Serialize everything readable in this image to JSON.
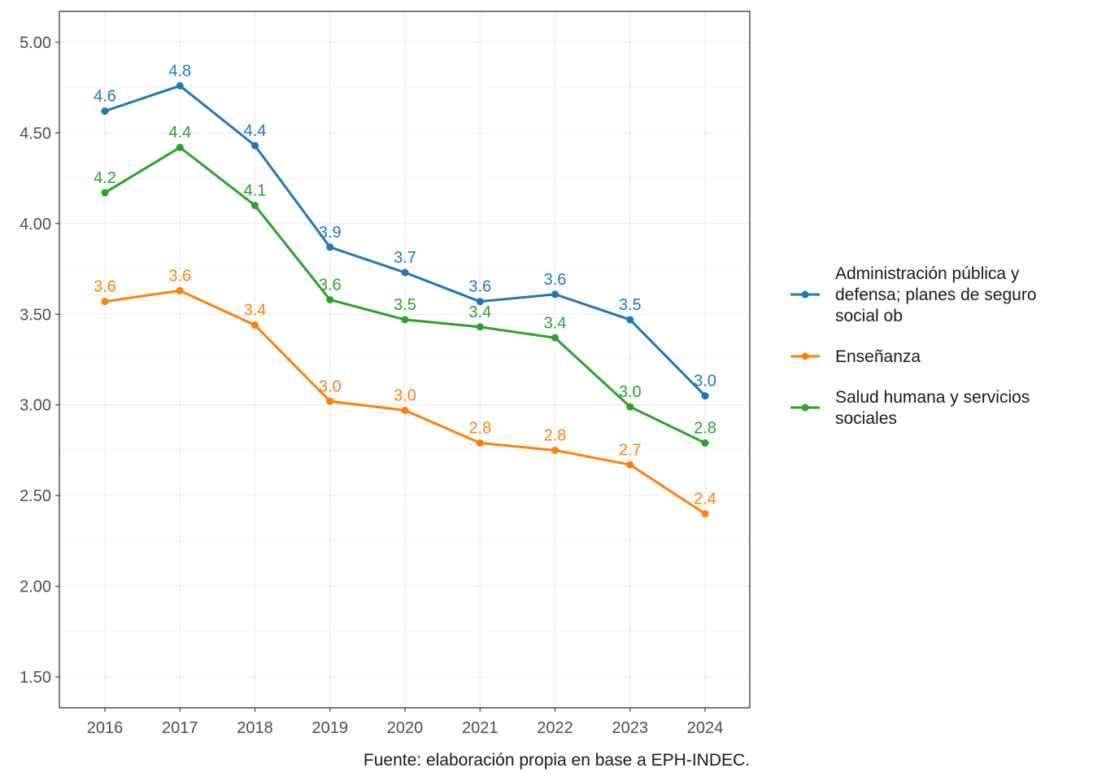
{
  "chart_data": {
    "type": "line",
    "title": "",
    "xlabel": "",
    "ylabel": "",
    "x": [
      "2016",
      "2017",
      "2018",
      "2019",
      "2020",
      "2021",
      "2022",
      "2023",
      "2024"
    ],
    "ylim": [
      1.33,
      5.17
    ],
    "yticks": [
      "1.50",
      "2.00",
      "2.50",
      "3.00",
      "3.50",
      "4.00",
      "4.50",
      "5.00"
    ],
    "grid": true,
    "legend_position": "right",
    "series": [
      {
        "name": "Administración pública y defensa; planes de seguro social ob",
        "legend_lines": [
          "Administración pública y",
          "defensa; planes de seguro",
          "social ob"
        ],
        "color": "#1f77b4",
        "values": [
          4.62,
          4.76,
          4.43,
          3.87,
          3.73,
          3.57,
          3.61,
          3.47,
          3.05
        ],
        "labels": [
          "4.6",
          "4.8",
          "4.4",
          "3.9",
          "3.7",
          "3.6",
          "3.6",
          "3.5",
          "3.0"
        ]
      },
      {
        "name": "Enseñanza",
        "legend_lines": [
          "Enseñanza"
        ],
        "color": "#ff7f0e",
        "values": [
          3.57,
          3.63,
          3.44,
          3.02,
          2.97,
          2.79,
          2.75,
          2.67,
          2.4
        ],
        "labels": [
          "3.6",
          "3.6",
          "3.4",
          "3.0",
          "3.0",
          "2.8",
          "2.8",
          "2.7",
          "2.4"
        ]
      },
      {
        "name": "Salud humana y servicios sociales",
        "legend_lines": [
          "Salud humana y servicios",
          "sociales"
        ],
        "color": "#2ca02c",
        "values": [
          4.17,
          4.42,
          4.1,
          3.58,
          3.47,
          3.43,
          3.37,
          2.99,
          2.79
        ],
        "labels": [
          "4.2",
          "4.4",
          "4.1",
          "3.6",
          "3.5",
          "3.4",
          "3.4",
          "3.0",
          "2.8"
        ]
      }
    ],
    "caption": "Fuente: elaboración propia en base a EPH-INDEC."
  }
}
